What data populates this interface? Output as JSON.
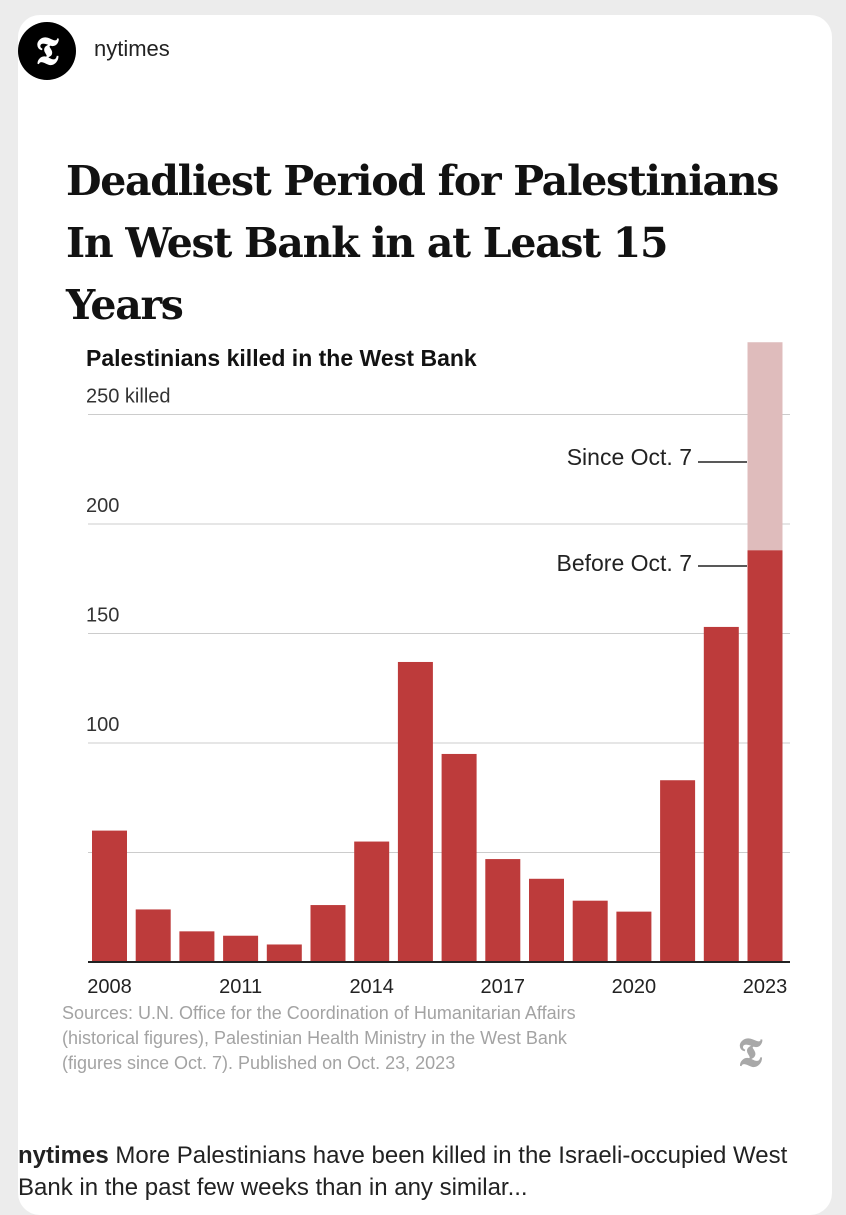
{
  "post": {
    "avatar_glyph": "𝕿",
    "username": "nytimes"
  },
  "headline": {
    "line1": "Deadliest Period for Palestinians",
    "line2": "In West Bank in at Least 15 Years"
  },
  "chart_data": {
    "type": "bar",
    "subtitle": "Palestinians killed in the West Bank",
    "ylim": [
      0,
      250
    ],
    "y_ticks": [
      {
        "value": 250,
        "label": "250 killed"
      },
      {
        "value": 200,
        "label": "200"
      },
      {
        "value": 150,
        "label": "150"
      },
      {
        "value": 100,
        "label": "100"
      },
      {
        "value": 50,
        "label": ""
      }
    ],
    "x_tick_labels": [
      "2008",
      "2011",
      "2014",
      "2017",
      "2020",
      "2023"
    ],
    "categories": [
      "2008",
      "2009",
      "2010",
      "2011",
      "2012",
      "2013",
      "2014",
      "2015",
      "2016",
      "2017",
      "2018",
      "2019",
      "2020",
      "2021",
      "2022",
      "2023"
    ],
    "series": [
      {
        "name": "Before Oct. 7",
        "color": "#bd3b3b",
        "values": [
          60,
          24,
          14,
          12,
          8,
          26,
          55,
          137,
          95,
          47,
          38,
          28,
          23,
          83,
          153,
          188
        ]
      },
      {
        "name": "Since Oct. 7",
        "color": "#dfbcbc",
        "values": [
          0,
          0,
          0,
          0,
          0,
          0,
          0,
          0,
          0,
          0,
          0,
          0,
          0,
          0,
          0,
          95
        ]
      }
    ],
    "annotations": [
      {
        "text": "Since Oct. 7",
        "series": "Since Oct. 7"
      },
      {
        "text": "Before Oct. 7",
        "series": "Before Oct. 7"
      }
    ],
    "grid": true
  },
  "sources": {
    "line1": "Sources: U.N. Office for the Coordination of Humanitarian Affairs",
    "line2": "(historical figures), Palestinian Health Ministry in the West Bank",
    "line3": "(figures since Oct. 7). Published on Oct. 23, 2023",
    "logo_glyph": "𝕿"
  },
  "caption": {
    "user": "nytimes",
    "text": "More Palestinians have been killed in the Israeli-occupied West Bank in the past few weeks than in any similar..."
  },
  "colors": {
    "bar": "#bd3b3b",
    "bar_light": "#dfbcbc",
    "grid": "#cccccc"
  }
}
